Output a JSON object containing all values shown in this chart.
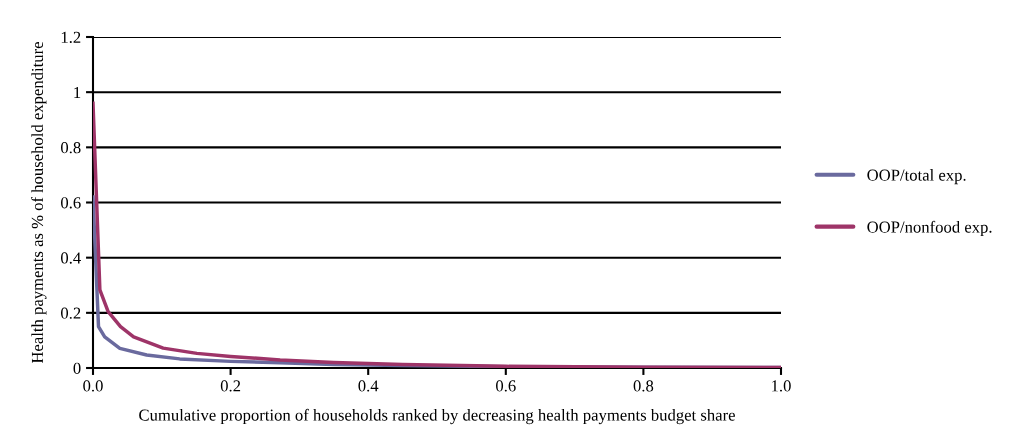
{
  "chart_data": {
    "type": "line",
    "xlabel": "Cumulative proportion of households ranked by decreasing health payments budget share",
    "ylabel": "Health payments as % of household expenditure",
    "series": [
      {
        "name": "OOP/total exp.",
        "color": "#6a6a9e",
        "x": [
          0,
          0.008,
          0.017,
          0.039,
          0.078,
          0.126,
          0.2,
          0.272,
          0.35,
          0.45,
          0.6,
          0.8,
          1.0
        ],
        "values": [
          0.62,
          0.15,
          0.113,
          0.071,
          0.047,
          0.033,
          0.024,
          0.019,
          0.013,
          0.009,
          0.005,
          0.003,
          0.002
        ]
      },
      {
        "name": "OOP/nonfood exp.",
        "color": "#9e3468",
        "x": [
          0,
          0.01,
          0.022,
          0.04,
          0.059,
          0.102,
          0.151,
          0.2,
          0.272,
          0.35,
          0.45,
          0.6,
          0.8,
          1.0
        ],
        "values": [
          0.96,
          0.283,
          0.204,
          0.15,
          0.113,
          0.072,
          0.053,
          0.042,
          0.029,
          0.02,
          0.013,
          0.006,
          0.003,
          0.002
        ]
      }
    ],
    "xlim": [
      0,
      1.0
    ],
    "xticks": [
      {
        "value": 0,
        "label": "0.0"
      },
      0.2,
      0.4,
      0.6,
      0.8,
      {
        "value": 1.0,
        "label": "1.0"
      }
    ],
    "ylim": [
      0,
      1.2
    ],
    "yticks": [
      0,
      0.2,
      0.4,
      0.6,
      0.8,
      1,
      1.2
    ],
    "grid": "y",
    "legend": "right",
    "marker": "none",
    "line_style": "solid"
  }
}
